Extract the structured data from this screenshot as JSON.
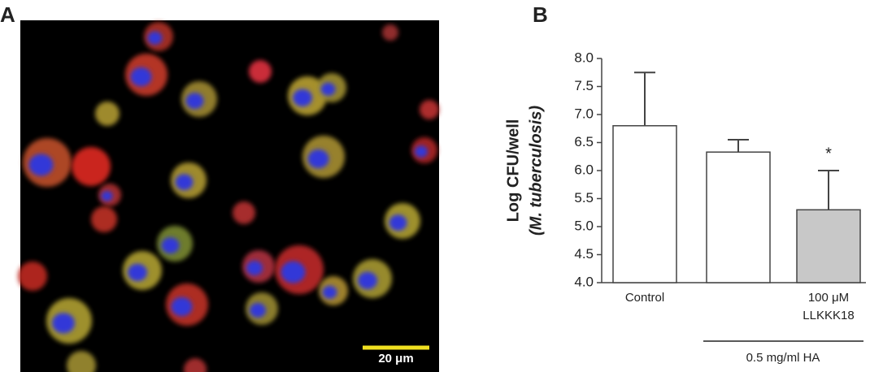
{
  "panels": {
    "a": "A",
    "b": "B"
  },
  "image": {
    "scale_bar": "20 μm"
  },
  "chart_data": {
    "type": "bar",
    "y_label": [
      "Log CFU/well",
      "(M. tuberculosis)"
    ],
    "categories": [
      "Control",
      null,
      "100 μM LLKKK18"
    ],
    "values": [
      6.8,
      6.33,
      5.3
    ],
    "errors": [
      0.95,
      0.22,
      0.7
    ],
    "colors": [
      "#ffffff",
      "#ffffff",
      "#c8c8c8"
    ],
    "ylim": [
      4.0,
      8.0
    ],
    "yticks": [
      {
        "value": 4.0,
        "label": "4.0"
      },
      {
        "value": 4.5,
        "label": "4.5"
      },
      {
        "value": 5.0,
        "label": "5.0"
      },
      {
        "value": 5.5,
        "label": "5.5"
      },
      {
        "value": 6.0,
        "label": "6.0"
      },
      {
        "value": 6.5,
        "label": "6.5"
      },
      {
        "value": 7.0,
        "label": "7.0"
      },
      {
        "value": 7.5,
        "label": "7.5"
      },
      {
        "value": 8.0,
        "label": "8.0"
      }
    ],
    "annotations": [
      "",
      "",
      "*"
    ],
    "group_label": "0.5 mg/ml HA"
  }
}
